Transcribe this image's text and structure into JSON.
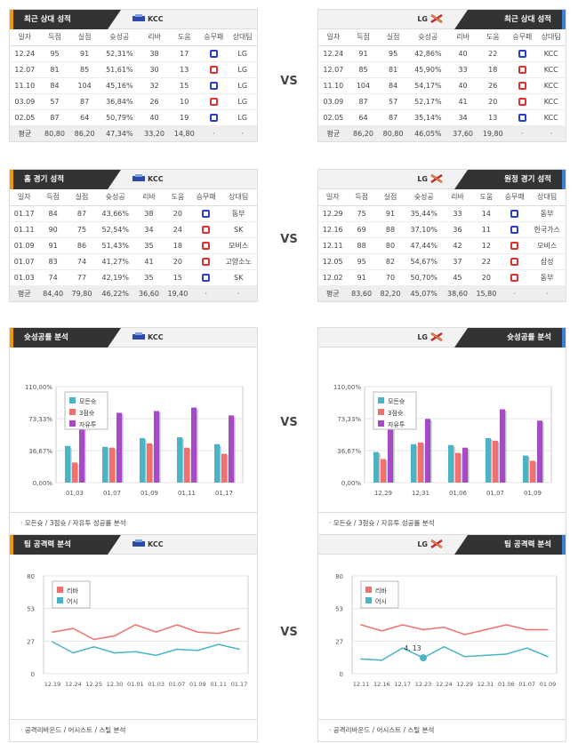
{
  "vs_label": "VS",
  "colors": {
    "win": "#2a3fd0",
    "loss": "#e03030",
    "series1": "#4ab3c6",
    "series2": "#f07070",
    "series3": "#a64ac9",
    "accent_left": "#f39800",
    "accent_right": "#3d7fd6"
  },
  "recent": {
    "title": "최근 상대 성적",
    "left_team": "KCC",
    "right_team": "LG",
    "headers": [
      "일자",
      "득점",
      "실점",
      "슛성공",
      "리바",
      "도움",
      "승무패",
      "상대팀"
    ],
    "left_rows": [
      [
        "12.24",
        "95",
        "91",
        "52,31%",
        "38",
        "17",
        "W",
        "LG"
      ],
      [
        "12.07",
        "81",
        "85",
        "51,61%",
        "30",
        "13",
        "L",
        "LG"
      ],
      [
        "11.10",
        "84",
        "104",
        "45,16%",
        "32",
        "15",
        "W",
        "LG"
      ],
      [
        "03.09",
        "57",
        "87",
        "36,84%",
        "26",
        "10",
        "L",
        "LG"
      ],
      [
        "02.05",
        "87",
        "64",
        "50,79%",
        "40",
        "19",
        "W",
        "LG"
      ]
    ],
    "left_avg": [
      "평균",
      "80,80",
      "86,20",
      "47,34%",
      "33,20",
      "14,80",
      "·",
      "·"
    ],
    "right_rows": [
      [
        "12.24",
        "91",
        "95",
        "42,86%",
        "40",
        "22",
        "W",
        "KCC"
      ],
      [
        "12.07",
        "85",
        "81",
        "45,90%",
        "33",
        "18",
        "L",
        "KCC"
      ],
      [
        "11.10",
        "104",
        "84",
        "54,17%",
        "40",
        "26",
        "L",
        "KCC"
      ],
      [
        "03.09",
        "87",
        "57",
        "52,17%",
        "41",
        "20",
        "L",
        "KCC"
      ],
      [
        "02.05",
        "64",
        "87",
        "35,14%",
        "34",
        "13",
        "W",
        "KCC"
      ]
    ],
    "right_avg": [
      "평균",
      "86,20",
      "80,80",
      "46,05%",
      "37,60",
      "19,80",
      "·",
      "·"
    ]
  },
  "home_away": {
    "left_title": "홈 경기 성적",
    "right_title": "원정 경기 성적",
    "left_rows": [
      [
        "01.17",
        "84",
        "87",
        "43,66%",
        "38",
        "20",
        "W",
        "동부"
      ],
      [
        "01.11",
        "90",
        "75",
        "52,54%",
        "34",
        "24",
        "L",
        "SK"
      ],
      [
        "01.09",
        "91",
        "86",
        "51,43%",
        "35",
        "18",
        "L",
        "모비스"
      ],
      [
        "01.07",
        "83",
        "74",
        "41,27%",
        "41",
        "20",
        "L",
        "고양소노"
      ],
      [
        "01.03",
        "74",
        "77",
        "42,19%",
        "35",
        "15",
        "W",
        "SK"
      ]
    ],
    "left_avg": [
      "평균",
      "84,40",
      "79,80",
      "46,22%",
      "36,60",
      "19,40",
      "·",
      "·"
    ],
    "right_rows": [
      [
        "12.29",
        "75",
        "91",
        "35,44%",
        "33",
        "14",
        "W",
        "동부"
      ],
      [
        "12.16",
        "69",
        "88",
        "37,10%",
        "36",
        "11",
        "W",
        "한국가스"
      ],
      [
        "12.11",
        "88",
        "80",
        "47,44%",
        "42",
        "12",
        "L",
        "모비스"
      ],
      [
        "12.05",
        "95",
        "82",
        "54,67%",
        "37",
        "22",
        "L",
        "삼성"
      ],
      [
        "12.02",
        "91",
        "70",
        "50,70%",
        "45",
        "20",
        "L",
        "동부"
      ]
    ],
    "right_avg": [
      "평균",
      "83,60",
      "82,20",
      "45,07%",
      "38,60",
      "15,80",
      "·",
      "·"
    ]
  },
  "shooting": {
    "title": "슛성공률 분석",
    "footer": "모든슛 / 3점슛 / 자유투 성공률 분석",
    "legend": [
      "모든슛",
      "3점슛",
      "자유투"
    ],
    "yticks": [
      "110,00%",
      "73,33%",
      "36,67%",
      "0,00%"
    ],
    "chart_data": [
      {
        "type": "bar",
        "categories": [
          "01,03",
          "01,07",
          "01,09",
          "01,11",
          "01,17"
        ],
        "ylim": [
          0,
          110
        ],
        "series": [
          {
            "name": "모든슛",
            "values": [
              42,
              41,
              51,
              52,
              44
            ]
          },
          {
            "name": "3점슛",
            "values": [
              23,
              40,
              45,
              40,
              33
            ]
          },
          {
            "name": "자유투",
            "values": [
              62,
              80,
              82,
              86,
              77
            ]
          }
        ]
      },
      {
        "type": "bar",
        "categories": [
          "12,29",
          "12,31",
          "01,06",
          "01,07",
          "01,09"
        ],
        "ylim": [
          0,
          110
        ],
        "series": [
          {
            "name": "모든슛",
            "values": [
              35,
              44,
              43,
              51,
              31
            ]
          },
          {
            "name": "3점슛",
            "values": [
              27,
              46,
              34,
              48,
              25
            ]
          },
          {
            "name": "자유투",
            "values": [
              62,
              73,
              40,
              84,
              71
            ]
          }
        ]
      }
    ]
  },
  "attack": {
    "title": "팀 공격력 분석",
    "footer": "공격리바운드 / 어시스트 / 스틸 분석",
    "legend": [
      "리바",
      "어시"
    ],
    "yticks": [
      "80",
      "53",
      "27",
      "0"
    ],
    "tooltip": "4, 13",
    "chart_data": [
      {
        "type": "line",
        "x": [
          "12.19",
          "12.24",
          "12.25",
          "12.30",
          "01.01",
          "01.03",
          "01.07",
          "01.09",
          "01.11",
          "01.17"
        ],
        "ylim": [
          0,
          80
        ],
        "series": [
          {
            "name": "리바",
            "values": [
              34,
              37,
              28,
              31,
              40,
              34,
              40,
              34,
              33,
              37
            ]
          },
          {
            "name": "어시",
            "values": [
              26,
              17,
              22,
              17,
              18,
              15,
              20,
              19,
              24,
              20
            ]
          }
        ]
      },
      {
        "type": "line",
        "x": [
          "12.11",
          "12.16",
          "12.17",
          "12.23",
          "12.24",
          "12.29",
          "12.31",
          "01.06",
          "01.07",
          "01.09"
        ],
        "ylim": [
          0,
          80
        ],
        "series": [
          {
            "name": "리바",
            "values": [
              40,
              35,
              40,
              36,
              38,
              32,
              36,
              40,
              36,
              36
            ]
          },
          {
            "name": "어시",
            "values": [
              12,
              11,
              21,
              13,
              22,
              14,
              15,
              16,
              21,
              14
            ]
          }
        ]
      }
    ]
  }
}
